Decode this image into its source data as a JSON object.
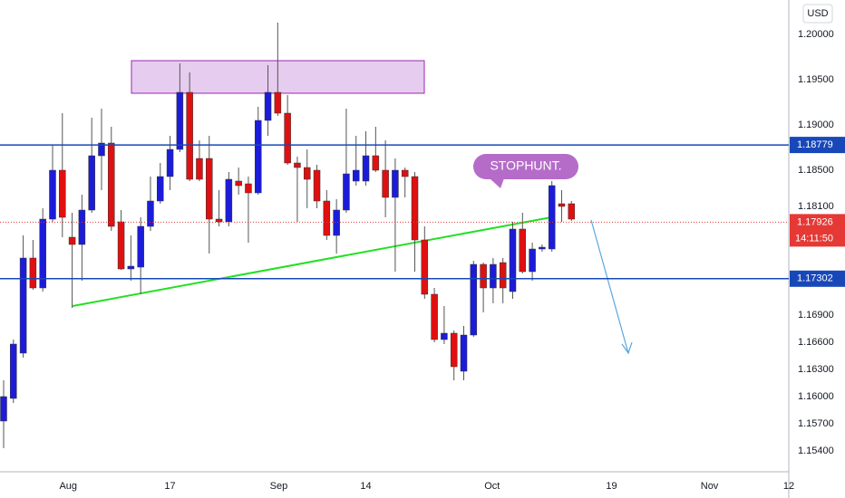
{
  "chart_data": {
    "type": "candlestick",
    "currency": "USD",
    "annotation": "STOPHUNT.",
    "open": [
      1.1573,
      1.1598,
      1.1648,
      1.1753,
      1.172,
      1.1796,
      1.185,
      1.1776,
      1.1768,
      1.1806,
      1.1866,
      1.188,
      1.1793,
      1.1741,
      1.1743,
      1.1788,
      1.1816,
      1.1843,
      1.1873,
      1.1936,
      1.1863,
      1.1863,
      1.1796,
      1.1793,
      1.1838,
      1.1835,
      1.1825,
      1.1905,
      1.1936,
      1.1913,
      1.1858,
      1.1853,
      1.185,
      1.1816,
      1.1778,
      1.1806,
      1.1838,
      1.1838,
      1.1866,
      1.185,
      1.182,
      1.185,
      1.1843,
      1.1773,
      1.1713,
      1.1663,
      1.167,
      1.1628,
      1.1668,
      1.1746,
      1.172,
      1.1748,
      1.1716,
      1.1785,
      1.1738,
      1.1763,
      1.1763,
      1.1813,
      1.1813
    ],
    "high": [
      1.1618,
      1.1663,
      1.1778,
      1.1773,
      1.1808,
      1.1878,
      1.1913,
      1.1803,
      1.1823,
      1.1908,
      1.1918,
      1.1898,
      1.1806,
      1.1778,
      1.1798,
      1.1843,
      1.1858,
      1.1888,
      1.1968,
      1.1958,
      1.1883,
      1.1888,
      1.1828,
      1.1848,
      1.1853,
      1.1843,
      1.192,
      1.1966,
      1.2013,
      1.1933,
      1.1865,
      1.1873,
      1.1856,
      1.1828,
      1.1818,
      1.1918,
      1.1888,
      1.1893,
      1.1898,
      1.1883,
      1.1863,
      1.1853,
      1.1848,
      1.1788,
      1.172,
      1.17,
      1.1673,
      1.1678,
      1.175,
      1.1748,
      1.1753,
      1.1753,
      1.1793,
      1.1803,
      1.177,
      1.1768,
      1.1838,
      1.1828,
      1.1816
    ],
    "low": [
      1.1543,
      1.1593,
      1.1643,
      1.1718,
      1.1716,
      1.1793,
      1.1776,
      1.1698,
      1.1728,
      1.1803,
      1.1828,
      1.1783,
      1.174,
      1.1728,
      1.1713,
      1.1783,
      1.1813,
      1.1828,
      1.187,
      1.1838,
      1.1838,
      1.1758,
      1.1788,
      1.1788,
      1.1823,
      1.177,
      1.1823,
      1.1888,
      1.191,
      1.1856,
      1.1793,
      1.1808,
      1.1808,
      1.1773,
      1.1758,
      1.1803,
      1.1833,
      1.1833,
      1.1848,
      1.1798,
      1.1738,
      1.182,
      1.1738,
      1.1708,
      1.166,
      1.1658,
      1.1618,
      1.1618,
      1.1666,
      1.1693,
      1.1703,
      1.1703,
      1.1708,
      1.1736,
      1.1728,
      1.176,
      1.176,
      1.1793,
      1.1794
    ],
    "close": [
      1.16,
      1.1658,
      1.1753,
      1.172,
      1.1796,
      1.185,
      1.1798,
      1.1768,
      1.1806,
      1.1866,
      1.188,
      1.1788,
      1.1741,
      1.1744,
      1.1788,
      1.1816,
      1.1843,
      1.1873,
      1.1936,
      1.184,
      1.184,
      1.1796,
      1.1793,
      1.184,
      1.1833,
      1.1825,
      1.1905,
      1.1936,
      1.1913,
      1.1858,
      1.1853,
      1.184,
      1.1816,
      1.1778,
      1.1806,
      1.1846,
      1.185,
      1.1866,
      1.185,
      1.182,
      1.185,
      1.1843,
      1.1773,
      1.1713,
      1.1663,
      1.167,
      1.1633,
      1.1668,
      1.1746,
      1.172,
      1.1746,
      1.172,
      1.1785,
      1.1738,
      1.1763,
      1.1765,
      1.1833,
      1.181,
      1.1796
    ],
    "up_color": "#1c1cd8",
    "down_color": "#e01010",
    "levels": [
      1.18779,
      1.17302
    ],
    "level_color": "#1848b8",
    "last_price": 1.17926,
    "last_price_color": "#e53935",
    "countdown": "14:11:50",
    "xlim": [
      -0.37,
      80.2
    ],
    "xticks": [
      {
        "value": 6.6,
        "label": "Aug"
      },
      {
        "value": 17.0,
        "label": "17"
      },
      {
        "value": 28.1,
        "label": "Sep"
      },
      {
        "value": 37.0,
        "label": "14"
      },
      {
        "value": 49.9,
        "label": "Oct"
      },
      {
        "value": 62.1,
        "label": "19"
      },
      {
        "value": 72.1,
        "label": "Nov"
      },
      {
        "value": 80.2,
        "label": "12"
      }
    ],
    "ylim": [
      1.1518,
      1.2038
    ],
    "yticks": [
      {
        "value": 1.2,
        "label": "1.20000"
      },
      {
        "value": 1.195,
        "label": "1.19500"
      },
      {
        "value": 1.19,
        "label": "1.19000"
      },
      {
        "value": 1.185,
        "label": "1.18500"
      },
      {
        "value": 1.181,
        "label": "1.18100"
      },
      {
        "value": 1.169,
        "label": "1.16900"
      },
      {
        "value": 1.166,
        "label": "1.16600"
      },
      {
        "value": 1.163,
        "label": "1.16300"
      },
      {
        "value": 1.16,
        "label": "1.16000"
      },
      {
        "value": 1.157,
        "label": "1.15700"
      },
      {
        "value": 1.154,
        "label": "1.15400"
      }
    ]
  }
}
